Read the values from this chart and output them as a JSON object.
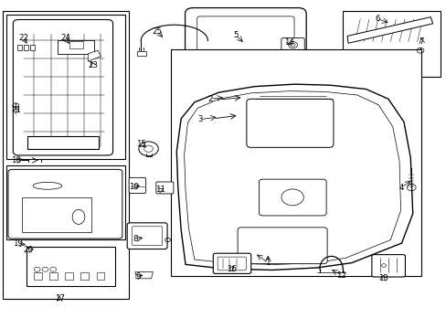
{
  "bg_color": "#ffffff",
  "line_color": "#000000",
  "label_color": "#000000",
  "fig_width": 4.89,
  "fig_height": 3.6,
  "dpi": 100,
  "label_positions": {
    "1": [
      0.6,
      0.2,
      0.57,
      0.23
    ],
    "2": [
      0.47,
      0.7,
      0.505,
      0.705
    ],
    "3": [
      0.448,
      0.638,
      0.49,
      0.645
    ],
    "4": [
      0.9,
      0.43,
      0.925,
      0.455
    ],
    "5": [
      0.528,
      0.895,
      0.548,
      0.868
    ],
    "6": [
      0.845,
      0.945,
      0.875,
      0.93
    ],
    "7": [
      0.945,
      0.875,
      0.942,
      0.895
    ],
    "8": [
      0.302,
      0.272,
      0.325,
      0.278
    ],
    "9": [
      0.308,
      0.158,
      0.325,
      0.165
    ],
    "10": [
      0.3,
      0.432,
      0.318,
      0.438
    ],
    "11": [
      0.358,
      0.422,
      0.372,
      0.43
    ],
    "12": [
      0.765,
      0.162,
      0.738,
      0.183
    ],
    "13": [
      0.858,
      0.152,
      0.862,
      0.172
    ],
    "14": [
      0.648,
      0.872,
      0.655,
      0.855
    ],
    "15": [
      0.315,
      0.562,
      0.332,
      0.548
    ],
    "16": [
      0.518,
      0.182,
      0.528,
      0.198
    ],
    "17": [
      0.132,
      0.092,
      0.132,
      0.108
    ],
    "18": [
      0.035,
      0.512,
      0.055,
      0.518
    ],
    "19": [
      0.038,
      0.258,
      0.062,
      0.255
    ],
    "20": [
      0.062,
      0.238,
      0.08,
      0.245
    ],
    "21": [
      0.035,
      0.665,
      0.045,
      0.675
    ],
    "22": [
      0.052,
      0.885,
      0.062,
      0.862
    ],
    "23": [
      0.208,
      0.802,
      0.198,
      0.822
    ],
    "24": [
      0.145,
      0.885,
      0.158,
      0.862
    ],
    "25": [
      0.352,
      0.905,
      0.368,
      0.882
    ]
  }
}
